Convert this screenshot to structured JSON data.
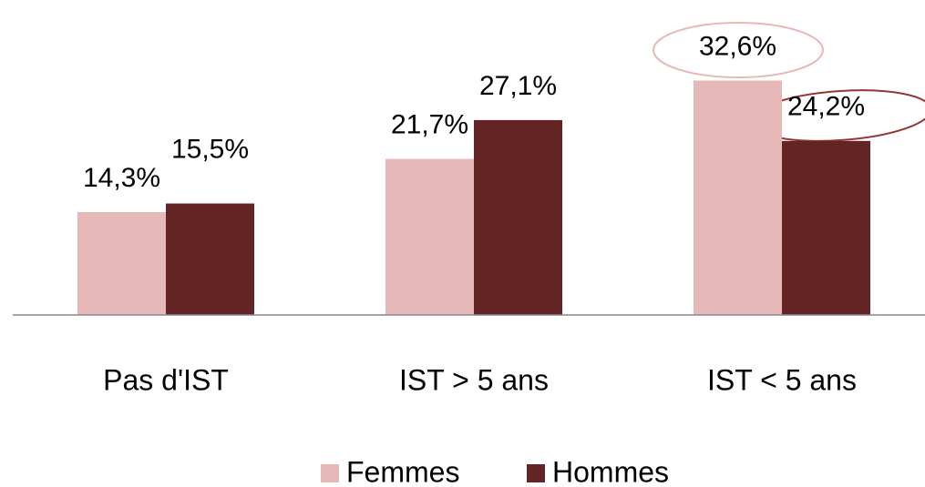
{
  "chart_data": {
    "type": "bar",
    "categories": [
      "Pas d'IST",
      "IST > 5 ans",
      "IST < 5 ans"
    ],
    "series": [
      {
        "name": "Femmes",
        "color": "#e6b9b8",
        "values": [
          14.3,
          21.7,
          32.6
        ],
        "value_labels": [
          "14,3%",
          "21,7%",
          "32,6%"
        ]
      },
      {
        "name": "Hommes",
        "color": "#632523",
        "values": [
          15.5,
          27.1,
          24.2
        ],
        "value_labels": [
          "15,5%",
          "27,1%",
          "24,2%"
        ]
      }
    ],
    "ylim": [
      0,
      40
    ]
  }
}
